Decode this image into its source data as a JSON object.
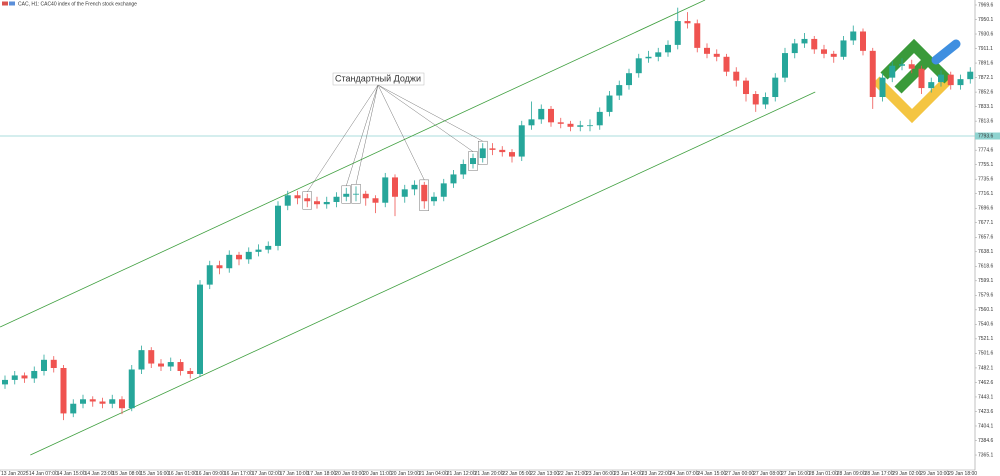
{
  "chart_data": {
    "type": "candlestick",
    "title": "CAC, H1:  CAC40 index of the French stock exchange",
    "up_color": "#26a69a",
    "down_color": "#ef5350",
    "ylim": [
      7345.0,
      7976.3
    ],
    "yticks": [
      7365.1,
      7384.6,
      7404.1,
      7423.6,
      7443.1,
      7462.6,
      7482.1,
      7501.6,
      7521.1,
      7540.6,
      7560.1,
      7579.6,
      7599.1,
      7618.6,
      7638.1,
      7657.6,
      7677.1,
      7696.6,
      7716.1,
      7735.6,
      7755.1,
      7774.6,
      7794.1,
      7813.6,
      7833.1,
      7852.6,
      7872.1,
      7891.6,
      7911.1,
      7930.6,
      7950.1,
      7969.6
    ],
    "x_labels": [
      "13 Jan 2025",
      "14 Jan 07:00",
      "14 Jan 15:00",
      "14 Jan 23:00",
      "15 Jan 08:00",
      "15 Jan 16:00",
      "16 Jan 01:00",
      "16 Jan 09:00",
      "16 Jan 17:00",
      "17 Jan 02:00",
      "17 Jan 10:00",
      "17 Jan 18:00",
      "20 Jan 03:00",
      "20 Jan 11:00",
      "20 Jan 19:00",
      "21 Jan 04:00",
      "21 Jan 12:00",
      "21 Jan 20:00",
      "22 Jan 05:00",
      "22 Jan 13:00",
      "22 Jan 21:00",
      "23 Jan 06:00",
      "23 Jan 14:00",
      "23 Jan 22:00",
      "24 Jan 07:00",
      "24 Jan 15:00",
      "27 Jan 00:00",
      "27 Jan 08:00",
      "27 Jan 16:00",
      "28 Jan 01:00",
      "28 Jan 09:00",
      "28 Jan 17:00",
      "29 Jan 02:00",
      "29 Jan 10:00",
      "29 Jan 18:00"
    ],
    "open": [
      7460,
      7466,
      7472,
      7468,
      7478,
      7493,
      7482,
      7421,
      7434,
      7440,
      7437,
      7434,
      7440,
      7428,
      7480,
      7506,
      7488,
      7484,
      7490,
      7478,
      7474,
      7594,
      7620,
      7616,
      7634,
      7628,
      7638,
      7641,
      7646,
      7700,
      7714,
      7710,
      7706,
      7702,
      7705,
      7712,
      7716,
      7716,
      7710,
      7704,
      7738,
      7712,
      7722,
      7728,
      7706,
      7712,
      7730,
      7742,
      7756,
      7764,
      7777,
      7775,
      7772,
      7766,
      7808,
      7816,
      7830,
      7812,
      7810,
      7806,
      7808,
      7808,
      7826,
      7848,
      7862,
      7878,
      7898,
      7900,
      7906,
      7916,
      7948,
      7945,
      7912,
      7904,
      7900,
      7880,
      7868,
      7850,
      7836,
      7846,
      7872,
      7905,
      7918,
      7924,
      7910,
      7904,
      7900,
      7922,
      7934,
      7908,
      7846,
      7872,
      7888,
      7890,
      7884,
      7858,
      7866,
      7876,
      7862,
      7870
    ],
    "high": [
      7472,
      7478,
      7476,
      7484,
      7500,
      7498,
      7486,
      7440,
      7446,
      7444,
      7442,
      7446,
      7444,
      7486,
      7512,
      7510,
      7494,
      7496,
      7494,
      7482,
      7600,
      7626,
      7626,
      7640,
      7638,
      7644,
      7648,
      7652,
      7706,
      7720,
      7720,
      7716,
      7712,
      7712,
      7718,
      7724,
      7726,
      7720,
      7714,
      7744,
      7742,
      7728,
      7734,
      7732,
      7718,
      7736,
      7748,
      7762,
      7770,
      7784,
      7784,
      7780,
      7776,
      7814,
      7840,
      7836,
      7834,
      7818,
      7814,
      7814,
      7816,
      7832,
      7854,
      7868,
      7884,
      7904,
      7908,
      7912,
      7922,
      7966,
      7960,
      7950,
      7918,
      7910,
      7904,
      7886,
      7872,
      7854,
      7852,
      7878,
      7912,
      7924,
      7932,
      7928,
      7916,
      7908,
      7928,
      7942,
      7938,
      7912,
      7878,
      7894,
      7898,
      7896,
      7888,
      7872,
      7882,
      7880,
      7876,
      7886
    ],
    "low": [
      7454,
      7460,
      7462,
      7462,
      7472,
      7476,
      7412,
      7416,
      7428,
      7430,
      7428,
      7428,
      7420,
      7424,
      7474,
      7482,
      7478,
      7478,
      7472,
      7468,
      7470,
      7588,
      7608,
      7610,
      7620,
      7622,
      7632,
      7636,
      7640,
      7694,
      7702,
      7698,
      7696,
      7696,
      7698,
      7706,
      7706,
      7700,
      7690,
      7698,
      7686,
      7704,
      7714,
      7696,
      7700,
      7706,
      7724,
      7736,
      7750,
      7758,
      7768,
      7766,
      7758,
      7760,
      7802,
      7810,
      7806,
      7804,
      7800,
      7800,
      7800,
      7802,
      7820,
      7842,
      7856,
      7872,
      7892,
      7894,
      7900,
      7910,
      7938,
      7906,
      7898,
      7894,
      7874,
      7860,
      7840,
      7826,
      7830,
      7840,
      7866,
      7898,
      7912,
      7904,
      7898,
      7892,
      7896,
      7916,
      7902,
      7830,
      7840,
      7866,
      7882,
      7878,
      7850,
      7852,
      7860,
      7856,
      7856,
      7864
    ],
    "close": [
      7466,
      7472,
      7468,
      7478,
      7493,
      7482,
      7421,
      7434,
      7440,
      7437,
      7434,
      7440,
      7428,
      7480,
      7506,
      7488,
      7484,
      7490,
      7478,
      7474,
      7594,
      7620,
      7616,
      7634,
      7628,
      7638,
      7641,
      7646,
      7700,
      7714,
      7710,
      7706,
      7702,
      7705,
      7712,
      7716,
      7716,
      7710,
      7704,
      7738,
      7712,
      7722,
      7728,
      7706,
      7712,
      7730,
      7742,
      7756,
      7764,
      7777,
      7775,
      7772,
      7766,
      7808,
      7816,
      7830,
      7812,
      7810,
      7806,
      7808,
      7808,
      7826,
      7848,
      7862,
      7878,
      7898,
      7900,
      7906,
      7916,
      7948,
      7945,
      7912,
      7904,
      7900,
      7880,
      7868,
      7850,
      7836,
      7846,
      7872,
      7905,
      7918,
      7924,
      7910,
      7904,
      7900,
      7922,
      7934,
      7908,
      7846,
      7872,
      7888,
      7890,
      7884,
      7858,
      7866,
      7876,
      7862,
      7870,
      7880
    ],
    "price_line": {
      "value": 7793.6,
      "color": "#8fd3d0"
    },
    "trendlines": [
      {
        "color": "#3f9f3f",
        "x": [
          -0.5,
          71.8
        ],
        "values": [
          7537.0,
          7976.3
        ]
      },
      {
        "color": "#3f9f3f",
        "x": [
          2.6,
          83.1
        ],
        "values": [
          7365.2,
          7852.7
        ]
      }
    ],
    "annotation": {
      "text": "Стандартный Доджи",
      "targets": [
        31,
        35,
        36,
        43,
        48,
        49
      ]
    }
  }
}
